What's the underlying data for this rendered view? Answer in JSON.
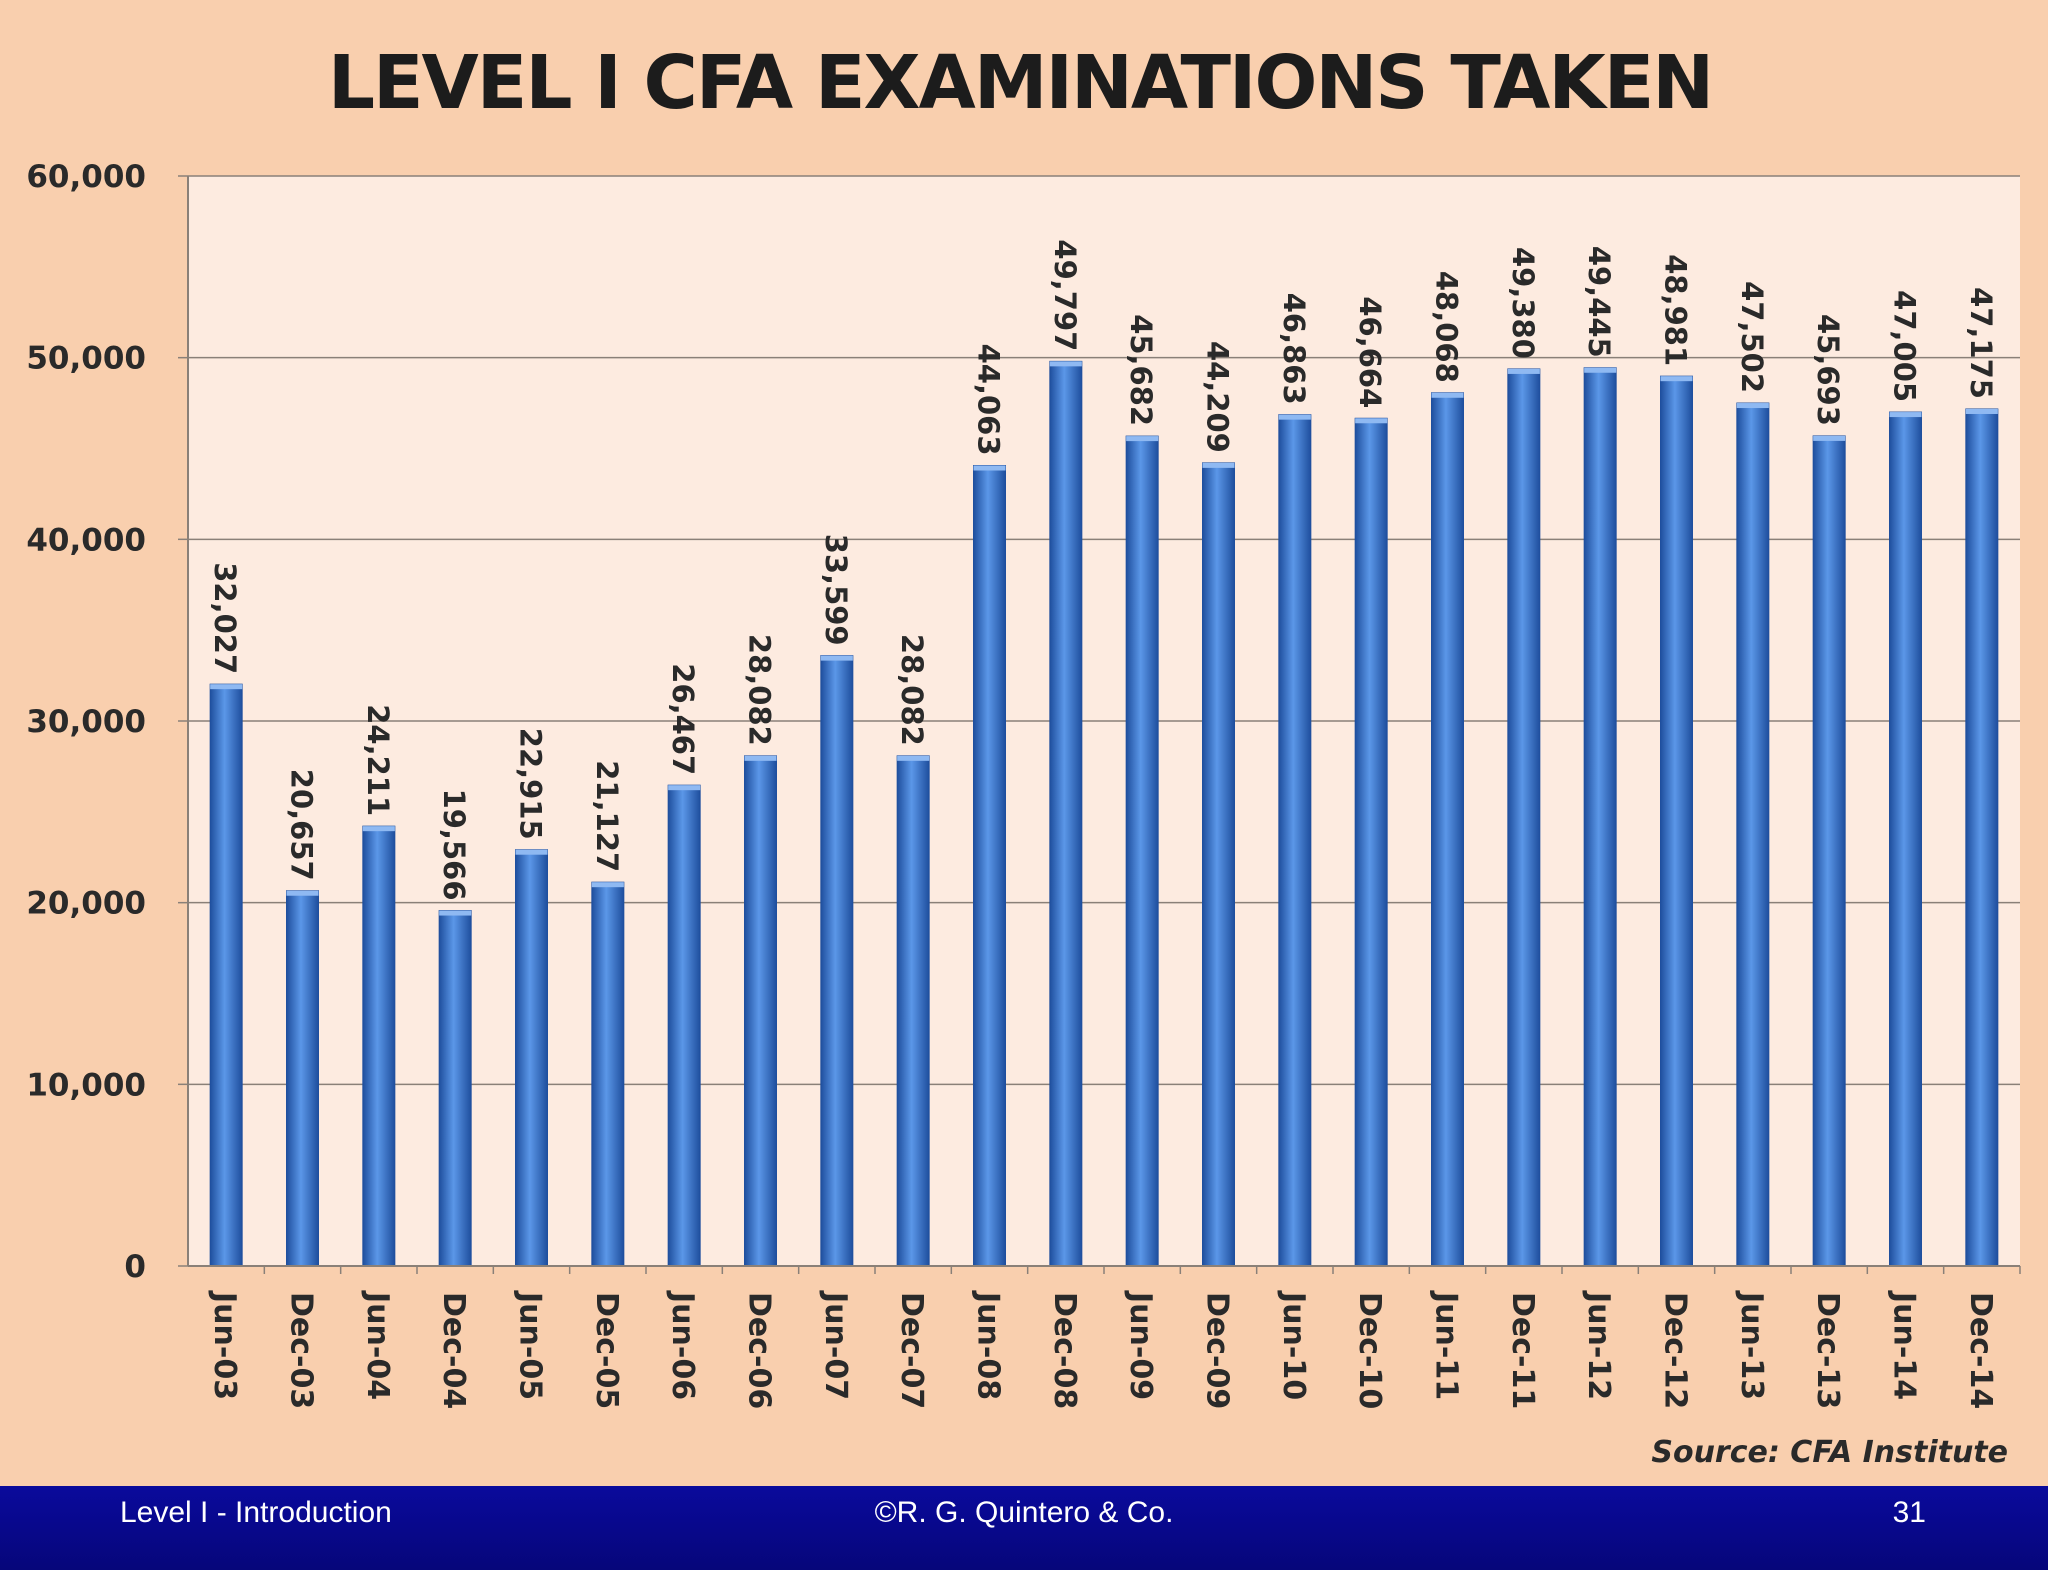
{
  "chart_data": {
    "type": "bar",
    "title": "LEVEL I CFA EXAMINATIONS TAKEN",
    "xlabel": "",
    "ylabel": "",
    "ylim": [
      0,
      60000
    ],
    "yticks": [
      "0",
      "10,000",
      "20,000",
      "30,000",
      "40,000",
      "50,000",
      "60,000"
    ],
    "ytick_values": [
      0,
      10000,
      20000,
      30000,
      40000,
      50000,
      60000
    ],
    "grid": true,
    "categories": [
      "Jun-03",
      "Dec-03",
      "Jun-04",
      "Dec-04",
      "Jun-05",
      "Dec-05",
      "Jun-06",
      "Dec-06",
      "Jun-07",
      "Dec-07",
      "Jun-08",
      "Dec-08",
      "Jun-09",
      "Dec-09",
      "Jun-10",
      "Dec-10",
      "Jun-11",
      "Dec-11",
      "Jun-12",
      "Dec-12",
      "Jun-13",
      "Dec-13",
      "Jun-14",
      "Dec-14"
    ],
    "values": [
      32027,
      20657,
      24211,
      19566,
      22915,
      21127,
      26467,
      28082,
      33599,
      28082,
      44063,
      49797,
      45682,
      44209,
      46863,
      46664,
      48068,
      49380,
      49445,
      48981,
      47502,
      45693,
      47005,
      47175
    ],
    "value_labels": [
      "32,027",
      "20,657",
      "24,211",
      "19,566",
      "22,915",
      "21,127",
      "26,467",
      "28,082",
      "33,599",
      "28,082",
      "44,063",
      "49,797",
      "45,682",
      "44,209",
      "46,863",
      "46,664",
      "48,068",
      "49,380",
      "49,445",
      "48,981",
      "47,502",
      "45,693",
      "47,005",
      "47,175"
    ],
    "annotation": "Source:  CFA Institute",
    "colors": {
      "bar": "#3d7ad6",
      "bar_dark": "#1f4f9e",
      "plot_bg": "#fdebe0",
      "page_bg": "#f9cfae"
    }
  },
  "footer": {
    "left": "Level I - Introduction",
    "center": "©R. G. Quintero & Co.",
    "right": "31"
  }
}
